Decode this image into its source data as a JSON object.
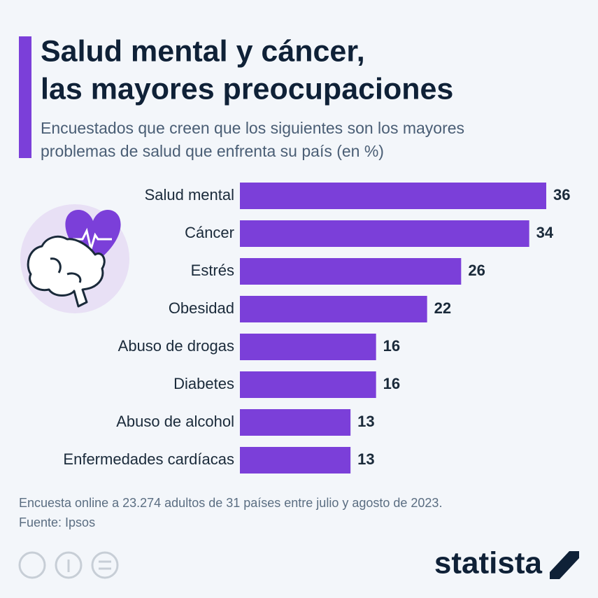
{
  "chart_data": {
    "type": "bar",
    "orientation": "horizontal",
    "title": [
      "Salud mental y cáncer,",
      "las mayores preocupaciones"
    ],
    "subtitle": [
      "Encuestados que creen que los siguientes son los mayores",
      "problemas de salud que enfrenta su país (en %)"
    ],
    "categories": [
      "Salud mental",
      "Cáncer",
      "Estrés",
      "Obesidad",
      "Abuso de drogas",
      "Diabetes",
      "Abuso de alcohol",
      "Enfermedades cardíacas"
    ],
    "values": [
      36,
      34,
      26,
      22,
      16,
      16,
      13,
      13
    ],
    "color": "#7b3fd9",
    "note": "Encuesta online a 23.274 adultos de 31 países entre julio y agosto de 2023.",
    "source": "Fuente: Ipsos",
    "brand": "statista"
  }
}
